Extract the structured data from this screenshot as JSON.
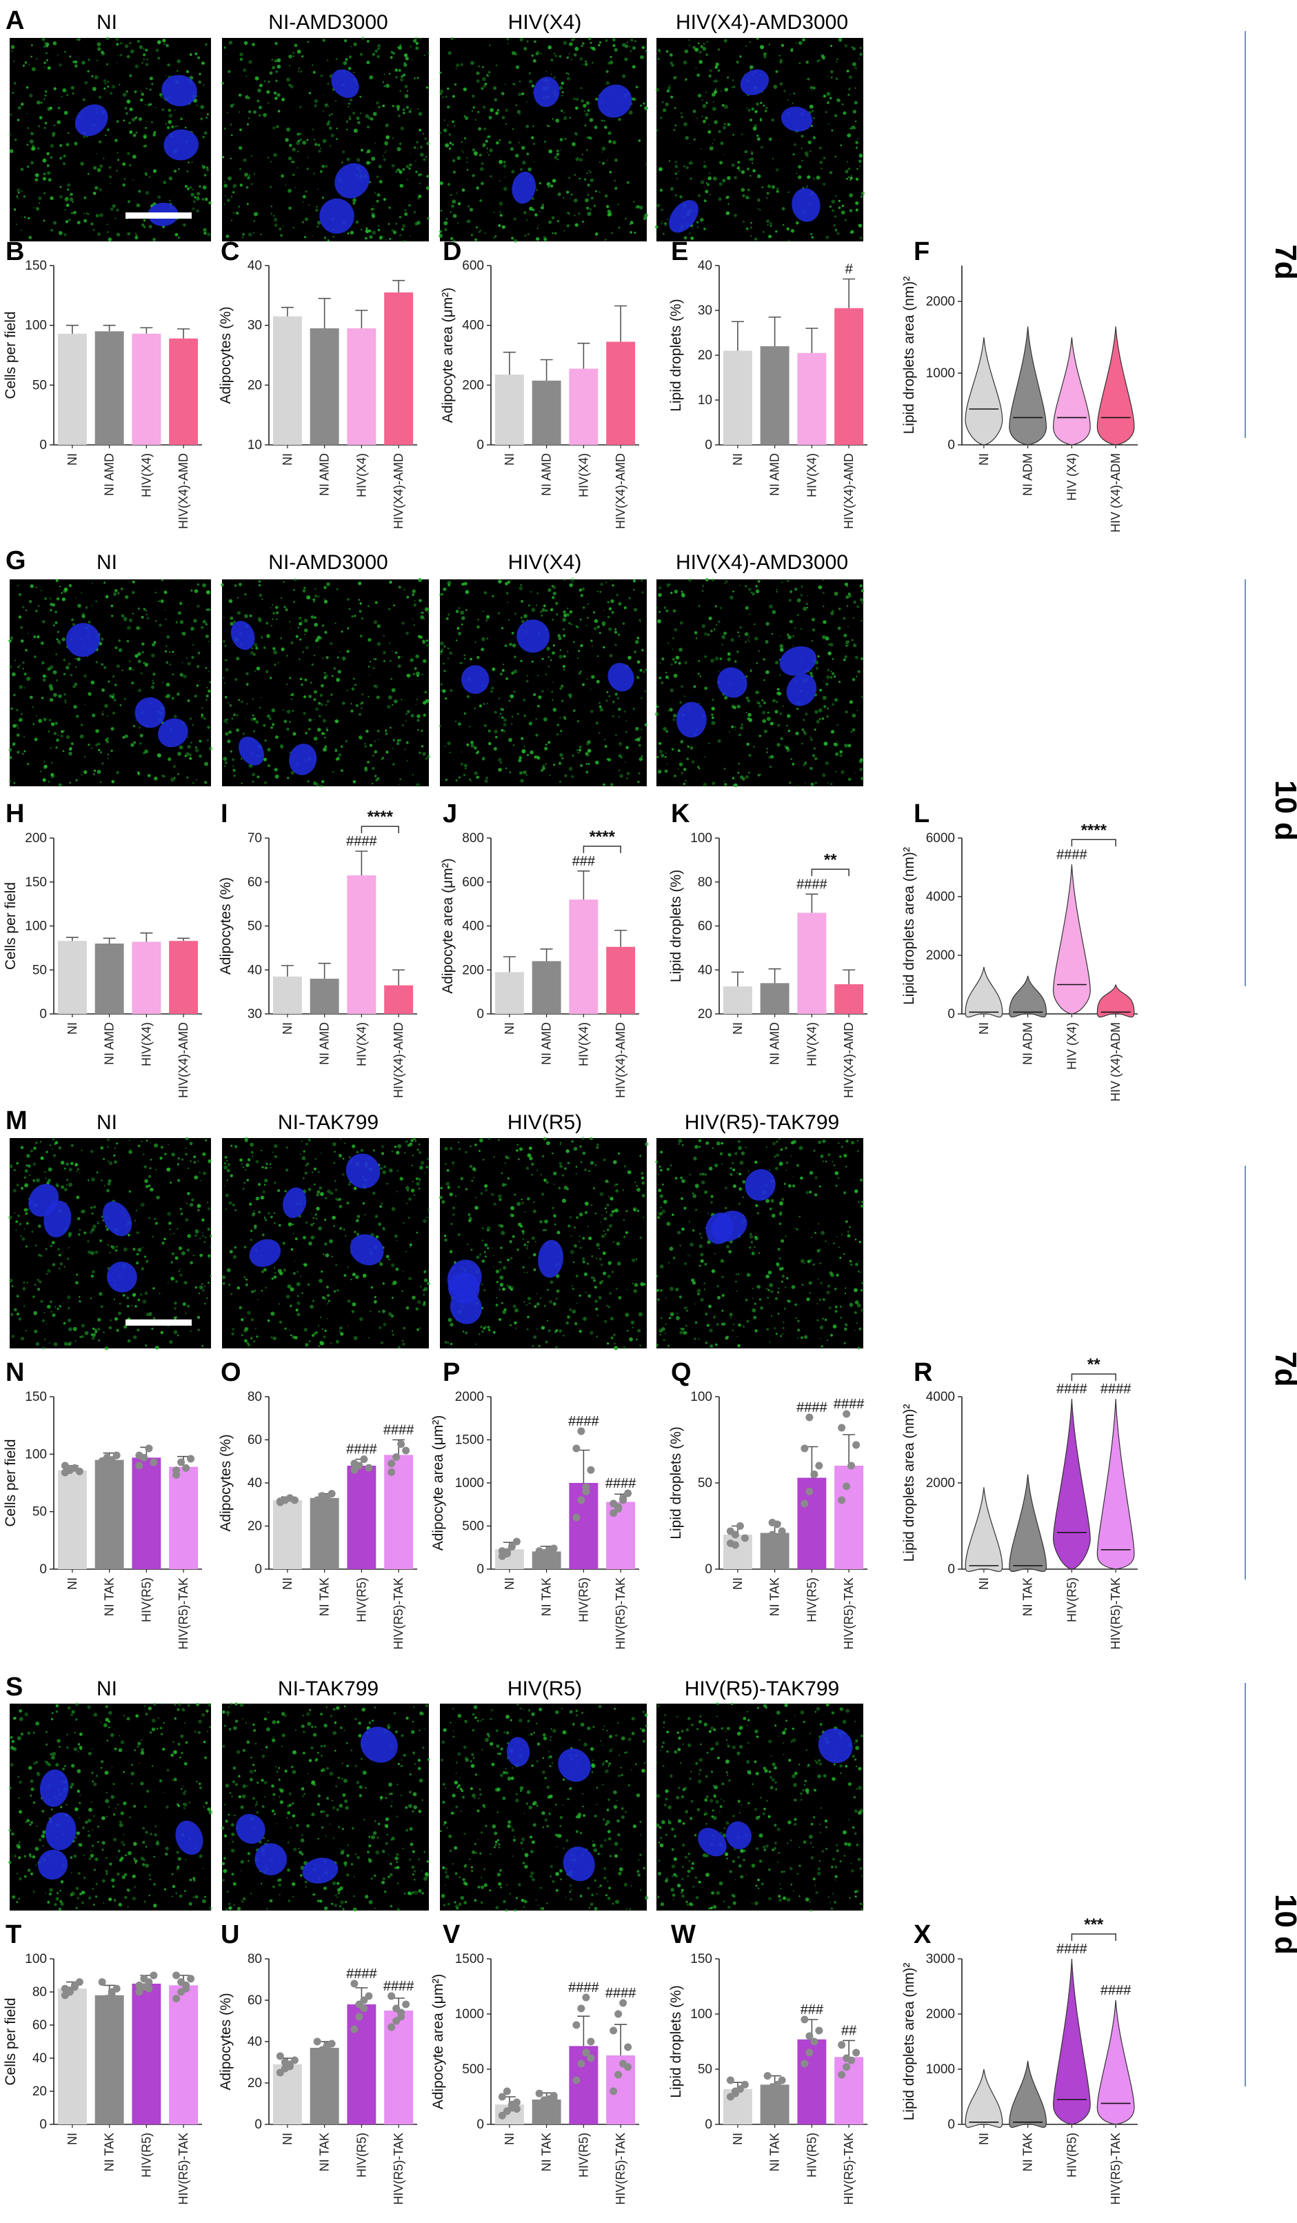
{
  "colors": {
    "NI": "#d6d6d6",
    "NI_drug": "#8a8a8a",
    "X4": "#f6a9e4",
    "X4_drug": "#f3658e",
    "R5": "#b043cf",
    "R5_drug": "#e78ff2",
    "dot": "#8a8a8a",
    "err": "#555555",
    "divider": "#6f8fcf",
    "micro_cyto": "#22b22a",
    "micro_nuc": "#1f2bd8"
  },
  "day_labels": [
    "7d",
    "10 d",
    "7d",
    "10 d"
  ],
  "micrographs": [
    {
      "panel": "A",
      "labels": [
        "NI",
        "NI-AMD3000",
        "HIV(X4)",
        "HIV(X4)-AMD3000"
      ],
      "scale_bar": true
    },
    {
      "panel": "G",
      "labels": [
        "NI",
        "NI-AMD3000",
        "HIV(X4)",
        "HIV(X4)-AMD3000"
      ],
      "scale_bar": false
    },
    {
      "panel": "M",
      "labels": [
        "NI",
        "NI-TAK799",
        "HIV(R5)",
        "HIV(R5)-TAK799"
      ],
      "scale_bar": true
    },
    {
      "panel": "S",
      "labels": [
        "NI",
        "NI-TAK799",
        "HIV(R5)",
        "HIV(R5)-TAK799"
      ],
      "scale_bar": false
    }
  ],
  "chart_data": [
    {
      "panel": "B",
      "type": "bar",
      "ylabel": "Cells per field",
      "ylim": [
        0,
        150
      ],
      "yticks": [
        0,
        50,
        100,
        150
      ],
      "categories": [
        "NI",
        "NI AMD",
        "HIV(X4)",
        "HIV(X4)-AMD"
      ],
      "values": [
        93,
        95,
        93,
        89
      ],
      "err": [
        7,
        5,
        5,
        8
      ],
      "colors": [
        "NI",
        "NI_drug",
        "X4",
        "X4_drug"
      ],
      "sig": []
    },
    {
      "panel": "C",
      "type": "bar",
      "ylabel": "Adipocytes (%)",
      "ylim": [
        10,
        40
      ],
      "yticks": [
        10,
        20,
        30,
        40
      ],
      "categories": [
        "NI",
        "NI AMD",
        "HIV(X4)",
        "HIV(X4)-AMD"
      ],
      "values": [
        31.5,
        29.5,
        29.5,
        35.5
      ],
      "err": [
        1.5,
        5,
        3,
        2
      ],
      "colors": [
        "NI",
        "NI_drug",
        "X4",
        "X4_drug"
      ],
      "sig": []
    },
    {
      "panel": "D",
      "type": "bar",
      "ylabel": "Adipocyte area (μm²)",
      "ylim": [
        0,
        600
      ],
      "yticks": [
        0,
        200,
        400,
        600
      ],
      "categories": [
        "NI",
        "NI AMD",
        "HIV(X4)",
        "HIV(X4)-AMD"
      ],
      "values": [
        235,
        215,
        255,
        345
      ],
      "err": [
        75,
        70,
        85,
        120
      ],
      "colors": [
        "NI",
        "NI_drug",
        "X4",
        "X4_drug"
      ],
      "sig": []
    },
    {
      "panel": "E",
      "type": "bar",
      "ylabel": "Lipid droplets (%)",
      "ylim": [
        0,
        40
      ],
      "yticks": [
        0,
        10,
        20,
        30,
        40
      ],
      "categories": [
        "NI",
        "NI AMD",
        "HIV(X4)",
        "HIV(X4)-AMD"
      ],
      "values": [
        21,
        22,
        20.5,
        30.5
      ],
      "err": [
        6.5,
        6.5,
        5.5,
        6.5
      ],
      "colors": [
        "NI",
        "NI_drug",
        "X4",
        "X4_drug"
      ],
      "sig": [
        {
          "bar": 3,
          "text": "#"
        }
      ]
    },
    {
      "panel": "F",
      "type": "violin",
      "ylabel": "Lipid droplets area (nm)²",
      "ylim": [
        0,
        2500
      ],
      "yticks": [
        0,
        1000,
        2000
      ],
      "categories": [
        "NI",
        "NI ADM",
        "HIV (X4)",
        "HIV (X4)-ADM"
      ],
      "max": [
        1500,
        1650,
        1500,
        1650
      ],
      "median": [
        500,
        380,
        380,
        380
      ],
      "peak": [
        350,
        250,
        250,
        250
      ],
      "colors": [
        "NI",
        "NI_drug",
        "X4",
        "X4_drug"
      ],
      "sig": []
    },
    {
      "panel": "H",
      "type": "bar",
      "ylabel": "Cells per field",
      "ylim": [
        0,
        200
      ],
      "yticks": [
        0,
        50,
        100,
        150,
        200
      ],
      "categories": [
        "NI",
        "NI AMD",
        "HIV(X4)",
        "HIV(X4)-AMD"
      ],
      "values": [
        83,
        80,
        82,
        83
      ],
      "err": [
        4,
        6,
        10,
        3
      ],
      "colors": [
        "NI",
        "NI_drug",
        "X4",
        "X4_drug"
      ],
      "sig": []
    },
    {
      "panel": "I",
      "type": "bar",
      "ylabel": "Adipocytes (%)",
      "ylim": [
        30,
        70
      ],
      "yticks": [
        30,
        40,
        50,
        60,
        70
      ],
      "categories": [
        "NI",
        "NI AMD",
        "HIV(X4)",
        "HIV(X4)-AMD"
      ],
      "values": [
        38.5,
        38,
        61.5,
        36.5
      ],
      "err": [
        2.5,
        3.5,
        5.5,
        3.5
      ],
      "colors": [
        "NI",
        "NI_drug",
        "X4",
        "X4_drug"
      ],
      "sig": [
        {
          "bar": 2,
          "text": "####"
        }
      ],
      "bracket": {
        "from": 2,
        "to": 3,
        "text": "****"
      }
    },
    {
      "panel": "J",
      "type": "bar",
      "ylabel": "Adipocyte area (μm²)",
      "ylim": [
        0,
        800
      ],
      "yticks": [
        0,
        200,
        400,
        600,
        800
      ],
      "categories": [
        "NI",
        "NI AMD",
        "HIV(X4)",
        "HIV(X4)-AMD"
      ],
      "values": [
        190,
        240,
        520,
        305
      ],
      "err": [
        70,
        55,
        130,
        75
      ],
      "colors": [
        "NI",
        "NI_drug",
        "X4",
        "X4_drug"
      ],
      "sig": [
        {
          "bar": 2,
          "text": "###"
        }
      ],
      "bracket": {
        "from": 2,
        "to": 3,
        "text": "****"
      }
    },
    {
      "panel": "K",
      "type": "bar",
      "ylabel": "Lipid droplets (%)",
      "ylim": [
        20,
        100
      ],
      "yticks": [
        20,
        40,
        60,
        80,
        100
      ],
      "categories": [
        "NI",
        "NI AMD",
        "HIV(X4)",
        "HIV(X4)-AMD"
      ],
      "values": [
        32.5,
        34,
        66,
        33.5
      ],
      "err": [
        6.5,
        6.5,
        8.5,
        6.5
      ],
      "colors": [
        "NI",
        "NI_drug",
        "X4",
        "X4_drug"
      ],
      "sig": [
        {
          "bar": 2,
          "text": "####"
        }
      ],
      "bracket": {
        "from": 2,
        "to": 3,
        "text": "**"
      }
    },
    {
      "panel": "L",
      "type": "violin",
      "ylabel": "Lipid droplets area (nm)²",
      "ylim": [
        0,
        6000
      ],
      "yticks": [
        0,
        2000,
        4000,
        6000
      ],
      "categories": [
        "NI",
        "NI ADM",
        "HIV (X4)",
        "HIV (X4)-ADM"
      ],
      "max": [
        1600,
        1300,
        5100,
        1000
      ],
      "median": [
        60,
        60,
        1000,
        60
      ],
      "peak": [
        50,
        50,
        800,
        50
      ],
      "colors": [
        "NI",
        "NI_drug",
        "X4",
        "X4_drug"
      ],
      "sig": [
        {
          "bar": 2,
          "text": "####"
        }
      ],
      "bracket": {
        "from": 2,
        "to": 3,
        "text": "****"
      }
    },
    {
      "panel": "N",
      "type": "bar",
      "ylabel": "Cells per field",
      "ylim": [
        0,
        150
      ],
      "yticks": [
        0,
        50,
        100,
        150
      ],
      "categories": [
        "NI",
        "NI TAK",
        "HIV(R5)",
        "HIV(R5)-TAK"
      ],
      "values": [
        86,
        95,
        97,
        89
      ],
      "err": [
        4,
        6,
        9,
        9
      ],
      "points": [
        [
          84,
          86,
          88,
          85,
          90
        ],
        [
          92,
          97,
          95,
          99,
          94
        ],
        [
          90,
          97,
          105,
          93,
          99
        ],
        [
          82,
          93,
          88,
          96,
          86
        ]
      ],
      "colors": [
        "NI",
        "NI_drug",
        "R5",
        "R5_drug"
      ],
      "sig": []
    },
    {
      "panel": "O",
      "type": "bar",
      "ylabel": "Adipocytes (%)",
      "ylim": [
        0,
        80
      ],
      "yticks": [
        0,
        20,
        40,
        60,
        80
      ],
      "categories": [
        "NI",
        "NI TAK",
        "HIV(R5)",
        "HIV(R5)-TAK"
      ],
      "values": [
        32,
        33,
        48,
        53
      ],
      "err": [
        1.5,
        2,
        3,
        7
      ],
      "points": [
        [
          31,
          32,
          33,
          32,
          31.5
        ],
        [
          32,
          34,
          33,
          35,
          32
        ],
        [
          46,
          48,
          51,
          47,
          49
        ],
        [
          45,
          52,
          58,
          55,
          49
        ]
      ],
      "colors": [
        "NI",
        "NI_drug",
        "R5",
        "R5_drug"
      ],
      "sig": [
        {
          "bar": 2,
          "text": "####"
        },
        {
          "bar": 3,
          "text": "####"
        }
      ]
    },
    {
      "panel": "P",
      "type": "bar",
      "ylabel": "Adipocyte area (μm²)",
      "ylim": [
        0,
        2000
      ],
      "yticks": [
        0,
        500,
        1000,
        1500,
        2000
      ],
      "categories": [
        "NI",
        "NI TAK",
        "HIV(R5)",
        "HIV(R5)-TAK"
      ],
      "values": [
        230,
        205,
        1000,
        780
      ],
      "err": [
        80,
        60,
        380,
        90
      ],
      "points": [
        [
          150,
          200,
          260,
          320,
          210,
          180
        ],
        [
          160,
          190,
          220,
          240,
          210,
          180
        ],
        [
          600,
          800,
          950,
          1150,
          1400,
          1600,
          900
        ],
        [
          650,
          720,
          800,
          880,
          760,
          700,
          820
        ]
      ],
      "colors": [
        "NI",
        "NI_drug",
        "R5",
        "R5_drug"
      ],
      "sig": [
        {
          "bar": 2,
          "text": "####"
        },
        {
          "bar": 3,
          "text": "####"
        }
      ]
    },
    {
      "panel": "Q",
      "type": "bar",
      "ylabel": "Lipid droplets (%)",
      "ylim": [
        0,
        100
      ],
      "yticks": [
        0,
        50,
        100
      ],
      "categories": [
        "NI",
        "NI TAK",
        "HIV(R5)",
        "HIV(R5)-TAK"
      ],
      "values": [
        20,
        21,
        53,
        60
      ],
      "err": [
        5,
        6,
        18,
        18
      ],
      "points": [
        [
          15,
          20,
          25,
          18,
          22,
          14
        ],
        [
          14,
          20,
          26,
          22,
          18,
          27
        ],
        [
          38,
          45,
          55,
          60,
          70,
          88
        ],
        [
          40,
          48,
          60,
          72,
          82,
          90
        ]
      ],
      "colors": [
        "NI",
        "NI_drug",
        "R5",
        "R5_drug"
      ],
      "sig": [
        {
          "bar": 2,
          "text": "####"
        },
        {
          "bar": 3,
          "text": "####"
        }
      ]
    },
    {
      "panel": "R",
      "type": "violin",
      "ylabel": "Lipid droplets area (nm)²",
      "ylim": [
        0,
        4000
      ],
      "yticks": [
        0,
        2000,
        4000
      ],
      "categories": [
        "NI",
        "NI TAK",
        "HIV(R5)",
        "HIV(R5)-TAK"
      ],
      "max": [
        1900,
        2200,
        3950,
        3950
      ],
      "median": [
        80,
        80,
        850,
        450
      ],
      "peak": [
        60,
        60,
        700,
        350
      ],
      "colors": [
        "NI",
        "NI_drug",
        "R5",
        "R5_drug"
      ],
      "sig": [
        {
          "bar": 2,
          "text": "####"
        },
        {
          "bar": 3,
          "text": "####"
        }
      ],
      "bracket": {
        "from": 2,
        "to": 3,
        "text": "**"
      }
    },
    {
      "panel": "T",
      "type": "bar",
      "ylabel": "Cells per field",
      "ylim": [
        0,
        100
      ],
      "yticks": [
        0,
        20,
        40,
        60,
        80,
        100
      ],
      "categories": [
        "NI",
        "NI TAK",
        "HIV(R5)",
        "HIV(R5)-TAK"
      ],
      "values": [
        82,
        78,
        85,
        84
      ],
      "err": [
        4,
        6,
        5,
        6
      ],
      "points": [
        [
          78,
          80,
          84,
          86,
          82,
          81,
          83
        ],
        [
          70,
          74,
          78,
          82,
          86,
          76,
          80
        ],
        [
          80,
          83,
          86,
          90,
          84,
          88,
          82
        ],
        [
          76,
          80,
          84,
          88,
          90,
          86,
          82
        ]
      ],
      "colors": [
        "NI",
        "NI_drug",
        "R5",
        "R5_drug"
      ],
      "sig": []
    },
    {
      "panel": "U",
      "type": "bar",
      "ylabel": "Adipocytes (%)",
      "ylim": [
        0,
        80
      ],
      "yticks": [
        0,
        20,
        40,
        60,
        80
      ],
      "categories": [
        "NI",
        "NI TAK",
        "HIV(R5)",
        "HIV(R5)-TAK"
      ],
      "values": [
        29,
        37,
        58,
        55
      ],
      "err": [
        3,
        3,
        8,
        6
      ],
      "points": [
        [
          25,
          27,
          29,
          31,
          33,
          30,
          28
        ],
        [
          33,
          35,
          37,
          39,
          40,
          36,
          38
        ],
        [
          46,
          52,
          56,
          62,
          68,
          58,
          60
        ],
        [
          47,
          50,
          54,
          58,
          62,
          56,
          52
        ]
      ],
      "colors": [
        "NI",
        "NI_drug",
        "R5",
        "R5_drug"
      ],
      "sig": [
        {
          "bar": 2,
          "text": "####"
        },
        {
          "bar": 3,
          "text": "####"
        }
      ]
    },
    {
      "panel": "V",
      "type": "bar",
      "ylabel": "Adipocyte area (μm²)",
      "ylim": [
        0,
        1500
      ],
      "yticks": [
        0,
        500,
        1000,
        1500
      ],
      "categories": [
        "NI",
        "NI TAK",
        "HIV(R5)",
        "HIV(R5)-TAK"
      ],
      "values": [
        180,
        225,
        710,
        625
      ],
      "err": [
        70,
        60,
        270,
        280
      ],
      "points": [
        [
          80,
          120,
          150,
          200,
          250,
          300,
          180,
          140
        ],
        [
          150,
          200,
          230,
          260,
          280,
          220,
          190,
          240
        ],
        [
          400,
          550,
          650,
          750,
          900,
          1050,
          1150,
          600
        ],
        [
          300,
          450,
          550,
          700,
          850,
          1000,
          1100,
          520
        ]
      ],
      "colors": [
        "NI",
        "NI_drug",
        "R5",
        "R5_drug"
      ],
      "sig": [
        {
          "bar": 2,
          "text": "####"
        },
        {
          "bar": 3,
          "text": "####"
        }
      ]
    },
    {
      "panel": "W",
      "type": "bar",
      "ylabel": "Lipid droplets (%)",
      "ylim": [
        0,
        150
      ],
      "yticks": [
        0,
        50,
        100,
        150
      ],
      "categories": [
        "NI",
        "NI TAK",
        "HIV(R5)",
        "HIV(R5)-TAK"
      ],
      "values": [
        32,
        36,
        77,
        61
      ],
      "err": [
        6,
        8,
        18,
        15
      ],
      "points": [
        [
          25,
          28,
          32,
          36,
          40,
          30
        ],
        [
          28,
          32,
          36,
          40,
          44,
          34
        ],
        [
          55,
          65,
          75,
          85,
          95,
          80
        ],
        [
          45,
          52,
          58,
          65,
          72,
          60
        ]
      ],
      "colors": [
        "NI",
        "NI_drug",
        "R5",
        "R5_drug"
      ],
      "sig": [
        {
          "bar": 2,
          "text": "###"
        },
        {
          "bar": 3,
          "text": "##"
        }
      ]
    },
    {
      "panel": "X",
      "type": "violin",
      "ylabel": "Lipid droplets area (nm)²",
      "ylim": [
        0,
        3000
      ],
      "yticks": [
        0,
        1000,
        2000,
        3000
      ],
      "categories": [
        "NI",
        "NI TAK",
        "HIV(R5)",
        "HIV(R5)-TAK"
      ],
      "max": [
        1000,
        1150,
        3000,
        2250
      ],
      "median": [
        40,
        40,
        450,
        380
      ],
      "peak": [
        30,
        30,
        350,
        300
      ],
      "colors": [
        "NI",
        "NI_drug",
        "R5",
        "R5_drug"
      ],
      "sig": [
        {
          "bar": 2,
          "text": "####"
        },
        {
          "bar": 3,
          "text": "####"
        }
      ],
      "bracket": {
        "from": 2,
        "to": 3,
        "text": "***"
      }
    }
  ]
}
